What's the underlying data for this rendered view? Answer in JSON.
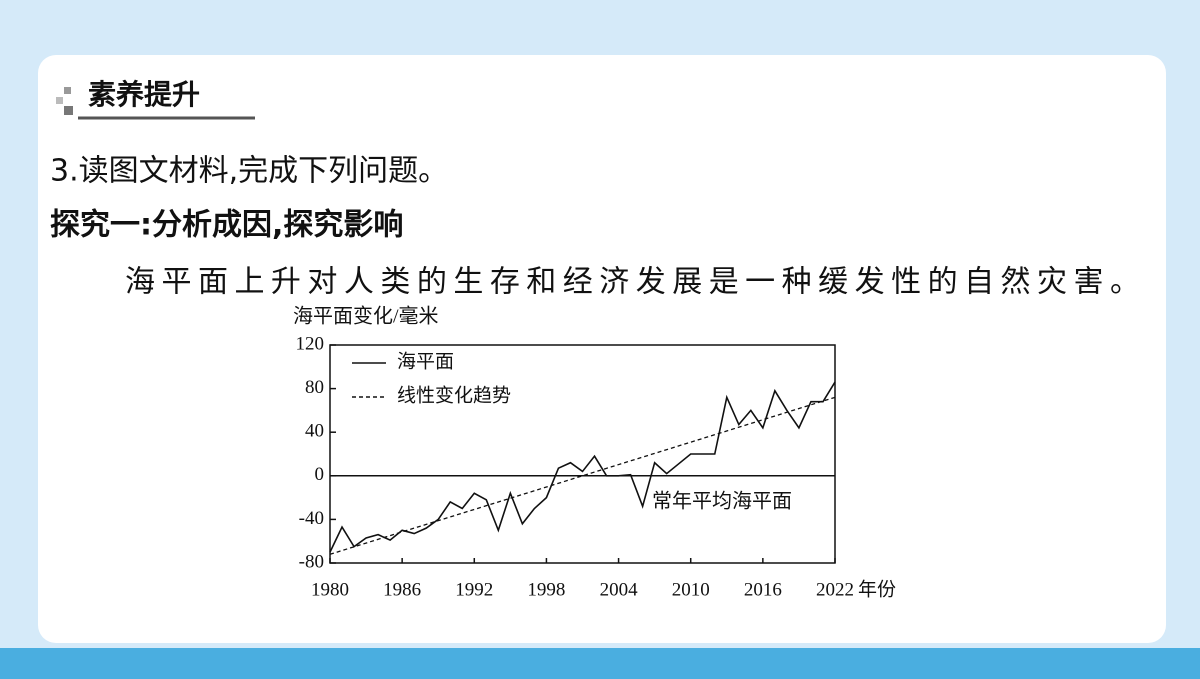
{
  "header": {
    "title": "素养提升"
  },
  "question": "3.读图文材料,完成下列问题。",
  "subheading": "探究一:分析成因,探究影响",
  "paragraph": "海平面上升对人类的生存和经济发展是一种缓发性的自然灾害。",
  "chart_data": {
    "type": "line",
    "y_label": "海平面变化/毫米",
    "x_label": "年份",
    "annotation": "常年平均海平面",
    "x": [
      1980,
      1981,
      1982,
      1983,
      1984,
      1985,
      1986,
      1987,
      1988,
      1989,
      1990,
      1991,
      1992,
      1993,
      1994,
      1995,
      1996,
      1997,
      1998,
      1999,
      2000,
      2001,
      2002,
      2003,
      2004,
      2005,
      2006,
      2007,
      2008,
      2009,
      2010,
      2011,
      2012,
      2013,
      2014,
      2015,
      2016,
      2017,
      2018,
      2019,
      2020,
      2021,
      2022
    ],
    "series": [
      {
        "name": "海平面",
        "color": "#111111",
        "style": "solid",
        "values": [
          -70,
          -47,
          -65,
          -57,
          -54,
          -59,
          -50,
          -53,
          -48,
          -40,
          -24,
          -30,
          -16,
          -22,
          -50,
          -16,
          -44,
          -30,
          -20,
          7,
          12,
          4,
          18,
          0,
          0,
          1,
          -28,
          12,
          2,
          11,
          20,
          20,
          20,
          72,
          47,
          60,
          44,
          78,
          60,
          44,
          68,
          68,
          86
        ]
      },
      {
        "name": "线性变化趋势",
        "color": "#111111",
        "style": "dashed",
        "x": [
          1980,
          2022
        ],
        "values": [
          -72,
          72
        ]
      }
    ],
    "xlim": [
      1980,
      2022
    ],
    "xticks": [
      1980,
      1986,
      1992,
      1998,
      2004,
      2010,
      2016,
      2022
    ],
    "ylim": [
      -80,
      120
    ],
    "yticks": [
      -80,
      -40,
      0,
      40,
      80,
      120
    ],
    "grid": false
  }
}
